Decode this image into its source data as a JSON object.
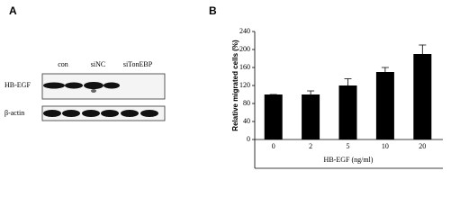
{
  "panel_a": {
    "label": "A",
    "lanes": [
      "con",
      "siNC",
      "siTonEBP"
    ],
    "rows": [
      "HB-EGF",
      "β-actin"
    ]
  },
  "chart_data": {
    "type": "bar",
    "panel_label": "B",
    "categories": [
      "0",
      "2",
      "5",
      "10",
      "20"
    ],
    "values": [
      100,
      100,
      120,
      150,
      190
    ],
    "errors": [
      0,
      8,
      15,
      10,
      20
    ],
    "color": "#000000",
    "ylim": [
      0,
      240
    ],
    "yticks": [
      0,
      40,
      80,
      120,
      160,
      200,
      240
    ],
    "y_label": "Relative migrated cells (%)",
    "x_label": "HB-EGF (ng/ml)",
    "grid": false
  }
}
